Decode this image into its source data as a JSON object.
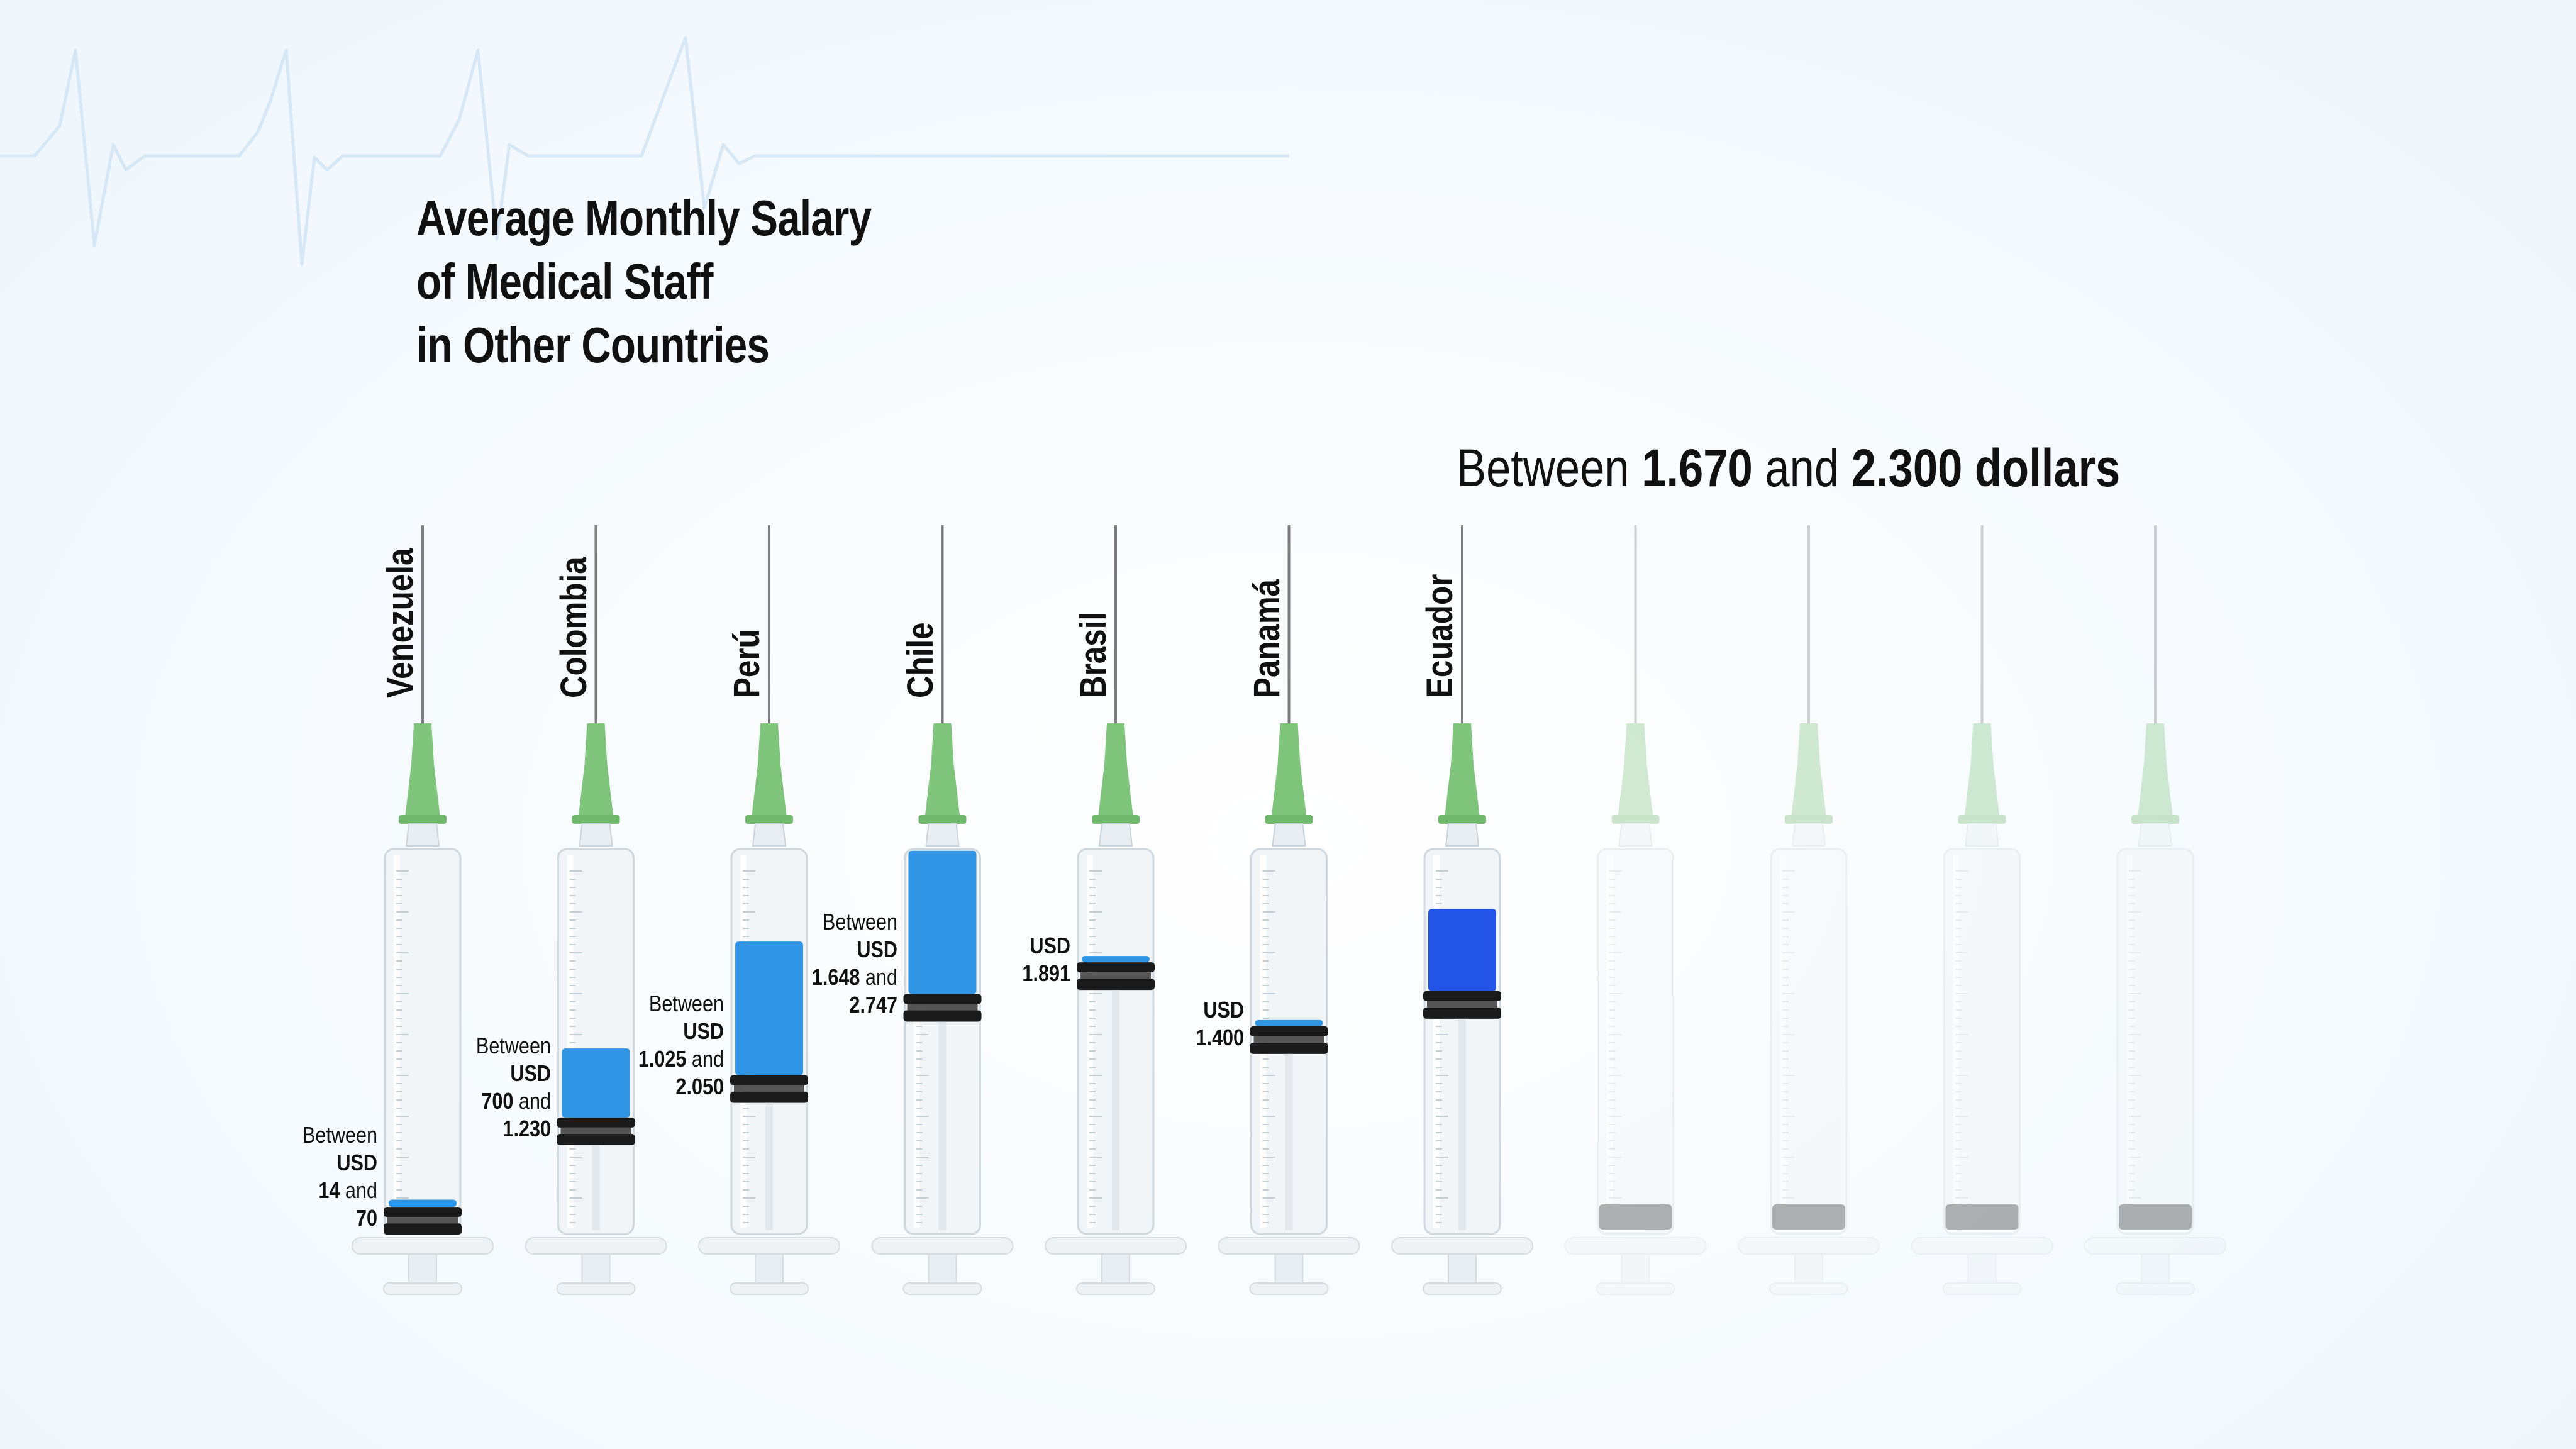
{
  "title_lines": [
    "Average Monthly Salary",
    "of Medical Staff",
    "in Other Countries"
  ],
  "ecuador_range": {
    "prefix": "Between",
    "low": "1.670",
    "mid": "and",
    "high": "2.300 dollars"
  },
  "chart_data": {
    "type": "bar",
    "title": "Average Monthly Salary of Medical Staff in Other Countries",
    "unit": "USD",
    "categories": [
      "Venezuela",
      "Colombia",
      "Perú",
      "Chile",
      "Brasil",
      "Panamá",
      "Ecuador"
    ],
    "ranges": [
      {
        "country": "Venezuela",
        "low": 14,
        "high": 70
      },
      {
        "country": "Colombia",
        "low": 700,
        "high": 1230
      },
      {
        "country": "Perú",
        "low": 1025,
        "high": 2050
      },
      {
        "country": "Chile",
        "low": 1648,
        "high": 2747
      },
      {
        "country": "Brasil",
        "low": 1891,
        "high": 1891
      },
      {
        "country": "Panamá",
        "low": 1400,
        "high": 1400
      },
      {
        "country": "Ecuador",
        "low": 1670,
        "high": 2300
      }
    ],
    "empty_syringes": 4,
    "colors": {
      "fill": "#2f95e4",
      "fill_ecuador": "#2254e8",
      "hub": "#7fc67c",
      "plunger": "#1a1a1a"
    }
  },
  "labels": [
    {
      "lines": [
        [
          "Between",
          ""
        ],
        [
          "",
          "USD"
        ],
        [
          "",
          "14",
          " and"
        ],
        [
          "",
          "70"
        ]
      ]
    },
    {
      "lines": [
        [
          "Between",
          ""
        ],
        [
          "",
          "USD"
        ],
        [
          "",
          "700",
          " and"
        ],
        [
          "",
          "1.230"
        ]
      ]
    },
    {
      "lines": [
        [
          "Between",
          ""
        ],
        [
          "",
          "USD"
        ],
        [
          "",
          "1.025",
          " and"
        ],
        [
          "",
          "2.050"
        ]
      ]
    },
    {
      "lines": [
        [
          "Between",
          ""
        ],
        [
          "",
          "USD"
        ],
        [
          "",
          "1.648",
          " and"
        ],
        [
          "",
          "2.747"
        ]
      ]
    },
    {
      "lines": [
        [
          "",
          "USD"
        ],
        [
          "",
          "1.891"
        ]
      ]
    },
    {
      "lines": [
        [
          "",
          "USD"
        ],
        [
          "",
          "1.400"
        ]
      ]
    },
    {
      "lines": []
    }
  ]
}
